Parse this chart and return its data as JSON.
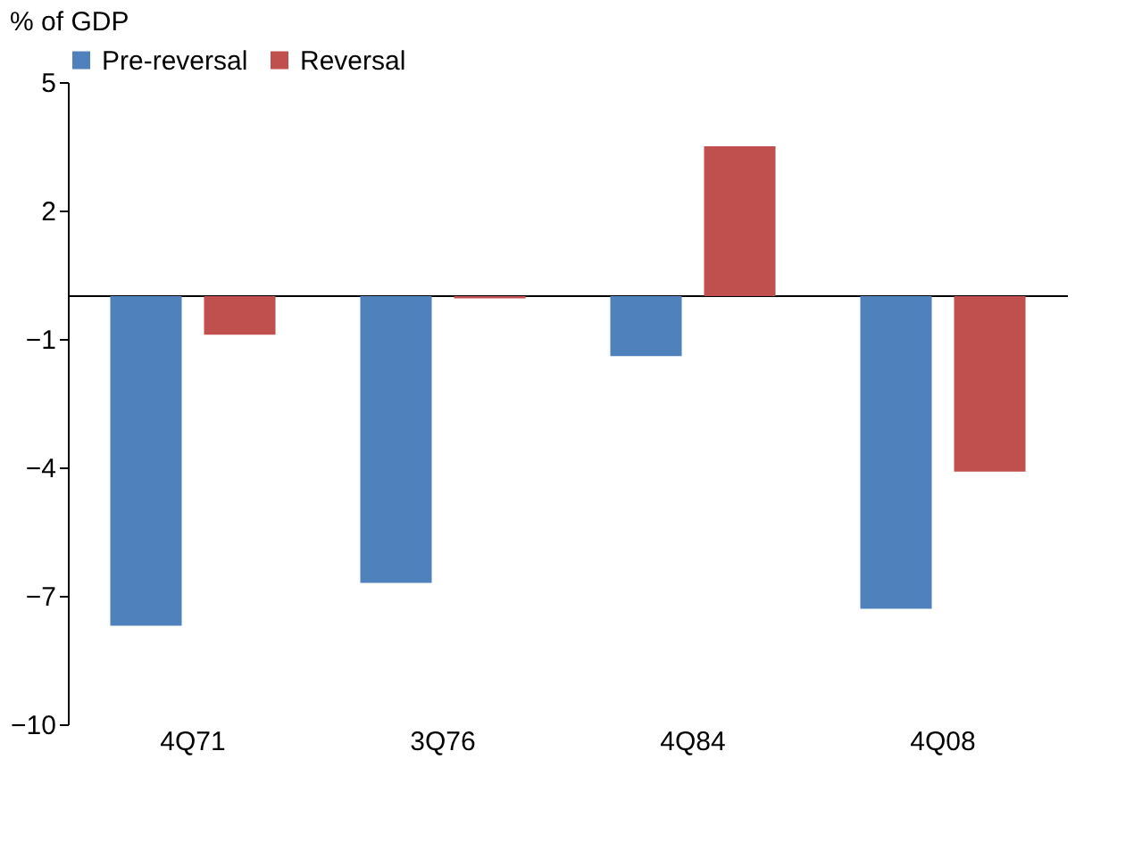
{
  "chart_data": {
    "type": "bar",
    "ylabel": "% of GDP",
    "categories": [
      "4Q71",
      "3Q76",
      "4Q84",
      "4Q08"
    ],
    "series": [
      {
        "name": "Pre-reversal",
        "color": "#4f81bd",
        "values": [
          -7.7,
          -6.7,
          -1.4,
          -7.3
        ]
      },
      {
        "name": "Reversal",
        "color": "#c0504d",
        "values": [
          -0.9,
          -0.05,
          3.5,
          -4.1
        ]
      }
    ],
    "ylim": [
      -10,
      5
    ],
    "yticks": [
      -10,
      -7,
      -4,
      -1,
      2,
      5
    ],
    "grid": false,
    "legend": "top"
  }
}
